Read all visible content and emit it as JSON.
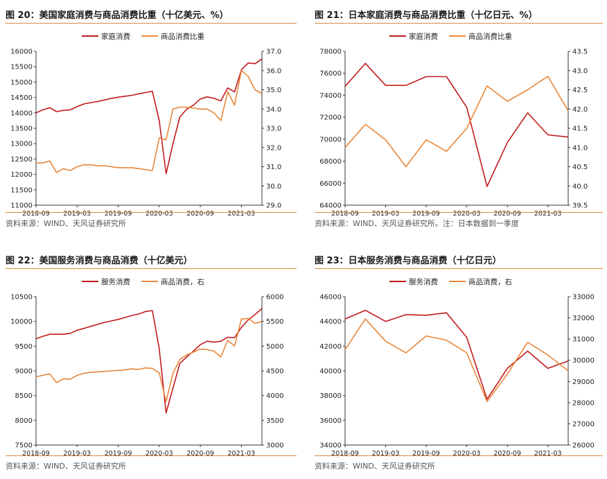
{
  "colors": {
    "red": "#c0191e",
    "orange": "#e8873a",
    "rule": "#d7893f"
  },
  "chart_data": [
    {
      "type": "line",
      "title": "图 20：美国家庭消费与商品消费比重（十亿美元、%）",
      "source": "资料来源：WIND、天风证券研究所",
      "x_ticks": [
        "2018-09",
        "2019-03",
        "2019-09",
        "2020-03",
        "2020-09",
        "2021-03"
      ],
      "x_range": [
        "2018-09",
        "2021-06"
      ],
      "y_left": {
        "ticks": [
          "11000",
          "11500",
          "12000",
          "12500",
          "13000",
          "13500",
          "14000",
          "14500",
          "15000",
          "15500",
          "16000"
        ],
        "min": 11000,
        "max": 16000
      },
      "y_right": {
        "ticks": [
          "29.0",
          "30.0",
          "31.0",
          "32.0",
          "33.0",
          "34.0",
          "35.0",
          "36.0",
          "37.0"
        ],
        "min": 29,
        "max": 37
      },
      "series": [
        {
          "name": "家庭消费",
          "axis": "left",
          "color": "#c0191e",
          "x": [
            "2018-09",
            "2018-10",
            "2018-11",
            "2018-12",
            "2019-01",
            "2019-02",
            "2019-03",
            "2019-04",
            "2019-05",
            "2019-06",
            "2019-07",
            "2019-08",
            "2019-09",
            "2019-10",
            "2019-11",
            "2019-12",
            "2020-01",
            "2020-02",
            "2020-03",
            "2020-04",
            "2020-05",
            "2020-06",
            "2020-07",
            "2020-08",
            "2020-09",
            "2020-10",
            "2020-11",
            "2020-12",
            "2021-01",
            "2021-02",
            "2021-03",
            "2021-04",
            "2021-05",
            "2021-06"
          ],
          "values": [
            14000,
            14100,
            14170,
            14040,
            14080,
            14100,
            14200,
            14290,
            14330,
            14370,
            14420,
            14470,
            14510,
            14540,
            14570,
            14620,
            14660,
            14700,
            13750,
            12020,
            13000,
            13860,
            14120,
            14250,
            14450,
            14520,
            14470,
            14390,
            14810,
            14680,
            15400,
            15620,
            15600,
            15750
          ]
        },
        {
          "name": "商品消费比重",
          "axis": "right",
          "color": "#e8873a",
          "x": [
            "2018-09",
            "2018-10",
            "2018-11",
            "2018-12",
            "2019-01",
            "2019-02",
            "2019-03",
            "2019-04",
            "2019-05",
            "2019-06",
            "2019-07",
            "2019-08",
            "2019-09",
            "2019-10",
            "2019-11",
            "2019-12",
            "2020-01",
            "2020-02",
            "2020-03",
            "2020-04",
            "2020-05",
            "2020-06",
            "2020-07",
            "2020-08",
            "2020-09",
            "2020-10",
            "2020-11",
            "2020-12",
            "2021-01",
            "2021-02",
            "2021-03",
            "2021-04",
            "2021-05",
            "2021-06"
          ],
          "values": [
            31.2,
            31.2,
            31.3,
            30.7,
            30.9,
            30.8,
            31.0,
            31.1,
            31.1,
            31.05,
            31.05,
            31.0,
            30.95,
            30.95,
            30.95,
            30.9,
            30.85,
            30.8,
            32.5,
            32.4,
            34.0,
            34.1,
            34.1,
            34.05,
            34.0,
            34.0,
            33.8,
            33.4,
            34.9,
            34.2,
            36.0,
            35.7,
            35.0,
            34.8
          ]
        }
      ]
    },
    {
      "type": "line",
      "title": "图 21：日本家庭消费与商品消费比重（十亿日元、%）",
      "source": "资料来源：WIND、天风证券研究所。注：日本数据到一季度",
      "x_ticks": [
        "2018-09",
        "2019-03",
        "2019-09",
        "2020-03",
        "2020-09",
        "2021-03"
      ],
      "x_range": [
        "2018-09",
        "2021-06"
      ],
      "y_left": {
        "ticks": [
          "64000",
          "66000",
          "68000",
          "70000",
          "72000",
          "74000",
          "76000",
          "78000"
        ],
        "min": 64000,
        "max": 78000
      },
      "y_right": {
        "ticks": [
          "39.5",
          "40.0",
          "40.5",
          "41.0",
          "41.5",
          "42.0",
          "42.5",
          "43.0",
          "43.5"
        ],
        "min": 39.5,
        "max": 43.5
      },
      "series": [
        {
          "name": "家庭消费",
          "axis": "left",
          "color": "#c0191e",
          "x": [
            "2018-09",
            "2018-12",
            "2019-03",
            "2019-06",
            "2019-09",
            "2019-12",
            "2020-03",
            "2020-06",
            "2020-09",
            "2020-12",
            "2021-03",
            "2021-06"
          ],
          "values": [
            74800,
            76900,
            74900,
            74900,
            75700,
            75700,
            72900,
            65700,
            69700,
            72400,
            70400,
            70200
          ]
        },
        {
          "name": "商品消费比重",
          "axis": "right",
          "color": "#e8873a",
          "x": [
            "2018-09",
            "2018-12",
            "2019-03",
            "2019-06",
            "2019-09",
            "2019-12",
            "2020-03",
            "2020-06",
            "2020-09",
            "2020-12",
            "2021-03",
            "2021-06"
          ],
          "values": [
            41.0,
            41.6,
            41.2,
            40.5,
            41.2,
            40.9,
            41.5,
            42.6,
            42.2,
            42.5,
            42.85,
            41.95
          ]
        }
      ]
    },
    {
      "type": "line",
      "title": "图 22：美国服务消费与商品消费（十亿美元）",
      "source": "资料来源：WIND、天风证券研究所",
      "x_ticks": [
        "2018-09",
        "2019-03",
        "2019-09",
        "2020-03",
        "2020-09",
        "2021-03"
      ],
      "x_range": [
        "2018-09",
        "2021-06"
      ],
      "y_left": {
        "ticks": [
          "7500",
          "8000",
          "8500",
          "9000",
          "9500",
          "10000",
          "10500"
        ],
        "min": 7500,
        "max": 10500
      },
      "y_right": {
        "ticks": [
          "3000",
          "3500",
          "4000",
          "4500",
          "5000",
          "5500",
          "6000"
        ],
        "min": 3000,
        "max": 6000
      },
      "series": [
        {
          "name": "服务消费",
          "axis": "left",
          "color": "#c0191e",
          "x": [
            "2018-09",
            "2018-10",
            "2018-11",
            "2018-12",
            "2019-01",
            "2019-02",
            "2019-03",
            "2019-04",
            "2019-05",
            "2019-06",
            "2019-07",
            "2019-08",
            "2019-09",
            "2019-10",
            "2019-11",
            "2019-12",
            "2020-01",
            "2020-02",
            "2020-03",
            "2020-04",
            "2020-05",
            "2020-06",
            "2020-07",
            "2020-08",
            "2020-09",
            "2020-10",
            "2020-11",
            "2020-12",
            "2021-01",
            "2021-02",
            "2021-03",
            "2021-04",
            "2021-05",
            "2021-06"
          ],
          "values": [
            9650,
            9700,
            9740,
            9740,
            9740,
            9760,
            9820,
            9860,
            9900,
            9940,
            9980,
            10010,
            10040,
            10080,
            10120,
            10150,
            10200,
            10220,
            9450,
            8150,
            8650,
            9150,
            9280,
            9400,
            9530,
            9600,
            9580,
            9600,
            9680,
            9670,
            9880,
            10030,
            10140,
            10260
          ]
        },
        {
          "name": "商品消费，右",
          "axis": "right",
          "color": "#e8873a",
          "x": [
            "2018-09",
            "2018-10",
            "2018-11",
            "2018-12",
            "2019-01",
            "2019-02",
            "2019-03",
            "2019-04",
            "2019-05",
            "2019-06",
            "2019-07",
            "2019-08",
            "2019-09",
            "2019-10",
            "2019-11",
            "2019-12",
            "2020-01",
            "2020-02",
            "2020-03",
            "2020-04",
            "2020-05",
            "2020-06",
            "2020-07",
            "2020-08",
            "2020-09",
            "2020-10",
            "2020-11",
            "2020-12",
            "2021-01",
            "2021-02",
            "2021-03",
            "2021-04",
            "2021-05",
            "2021-06"
          ],
          "values": [
            4380,
            4410,
            4440,
            4260,
            4340,
            4330,
            4410,
            4450,
            4470,
            4480,
            4490,
            4500,
            4510,
            4520,
            4540,
            4530,
            4560,
            4550,
            4460,
            3880,
            4450,
            4730,
            4820,
            4880,
            4940,
            4930,
            4900,
            4780,
            5120,
            5000,
            5550,
            5560,
            5460,
            5500
          ]
        }
      ]
    },
    {
      "type": "line",
      "title": "图 23：日本服务消费与商品消费（十亿日元）",
      "source": "资料来源：WIND、天风证券研究所",
      "x_ticks": [
        "2018-09",
        "2019-03",
        "2019-09",
        "2020-03",
        "2020-09",
        "2021-03"
      ],
      "x_range": [
        "2018-09",
        "2021-06"
      ],
      "y_left": {
        "ticks": [
          "34000",
          "36000",
          "38000",
          "40000",
          "42000",
          "44000",
          "46000"
        ],
        "min": 34000,
        "max": 46000
      },
      "y_right": {
        "ticks": [
          "26000",
          "27000",
          "28000",
          "29000",
          "30000",
          "31000",
          "32000",
          "33000"
        ],
        "min": 26000,
        "max": 33000
      },
      "series": [
        {
          "name": "服务消费",
          "axis": "left",
          "color": "#c0191e",
          "x": [
            "2018-09",
            "2018-12",
            "2019-03",
            "2019-06",
            "2019-09",
            "2019-12",
            "2020-03",
            "2020-06",
            "2020-09",
            "2020-12",
            "2021-03",
            "2021-06"
          ],
          "values": [
            44200,
            44900,
            44000,
            44550,
            44500,
            44700,
            42700,
            37700,
            40200,
            41600,
            40200,
            40800
          ]
        },
        {
          "name": "商品消费，右",
          "axis": "right",
          "color": "#e8873a",
          "x": [
            "2018-09",
            "2018-12",
            "2019-03",
            "2019-06",
            "2019-09",
            "2019-12",
            "2020-03",
            "2020-06",
            "2020-09",
            "2020-12",
            "2021-03",
            "2021-06"
          ],
          "values": [
            30500,
            31950,
            30900,
            30350,
            31150,
            30950,
            30350,
            28050,
            29350,
            30850,
            30250,
            29500
          ]
        }
      ]
    }
  ]
}
